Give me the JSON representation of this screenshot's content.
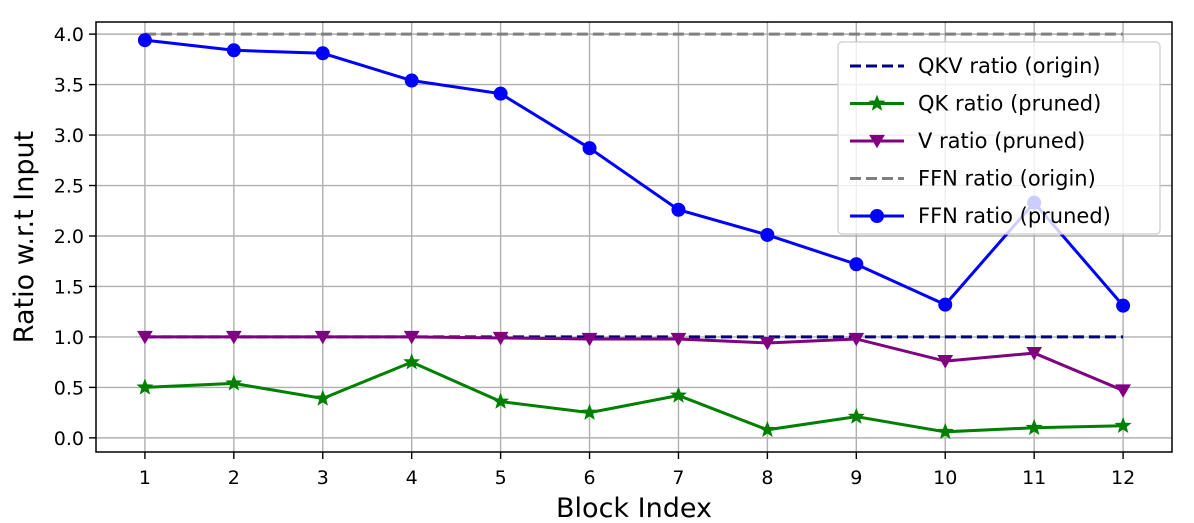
{
  "chart_data": {
    "type": "line",
    "xlabel": "Block Index",
    "ylabel": "Ratio w.r.t Input",
    "x": [
      1,
      2,
      3,
      4,
      5,
      6,
      7,
      8,
      9,
      10,
      11,
      12
    ],
    "xlim": [
      0.45,
      12.55
    ],
    "ylim": [
      -0.14,
      4.12
    ],
    "xticks": [
      1,
      2,
      3,
      4,
      5,
      6,
      7,
      8,
      9,
      10,
      11,
      12
    ],
    "yticks": [
      "0.0",
      "0.5",
      "1.0",
      "1.5",
      "2.0",
      "2.5",
      "3.0",
      "3.5",
      "4.0"
    ],
    "grid": true,
    "legend_position": "top-right",
    "series": [
      {
        "name": "QKV ratio (origin)",
        "color": "#000080",
        "line_style": "dashed",
        "marker": "none",
        "values": [
          1.0,
          1.0,
          1.0,
          1.0,
          1.0,
          1.0,
          1.0,
          1.0,
          1.0,
          1.0,
          1.0,
          1.0
        ]
      },
      {
        "name": "QK ratio (pruned)",
        "color": "#008000",
        "line_style": "solid",
        "marker": "star",
        "values": [
          0.5,
          0.54,
          0.39,
          0.75,
          0.36,
          0.25,
          0.42,
          0.08,
          0.21,
          0.06,
          0.1,
          0.12
        ]
      },
      {
        "name": "V ratio (pruned)",
        "color": "#800080",
        "line_style": "solid",
        "marker": "triangle-down",
        "values": [
          1.0,
          1.0,
          1.0,
          1.0,
          0.99,
          0.98,
          0.98,
          0.94,
          0.98,
          0.76,
          0.84,
          0.47
        ]
      },
      {
        "name": "FFN ratio (origin)",
        "color": "#808080",
        "line_style": "dashed",
        "marker": "none",
        "values": [
          4.0,
          4.0,
          4.0,
          4.0,
          4.0,
          4.0,
          4.0,
          4.0,
          4.0,
          4.0,
          4.0,
          4.0
        ]
      },
      {
        "name": "FFN ratio (pruned)",
        "color": "#0000ff",
        "line_style": "solid",
        "marker": "circle",
        "values": [
          3.94,
          3.84,
          3.81,
          3.54,
          3.41,
          2.87,
          2.26,
          2.01,
          1.72,
          1.32,
          2.33,
          1.31
        ]
      }
    ]
  }
}
